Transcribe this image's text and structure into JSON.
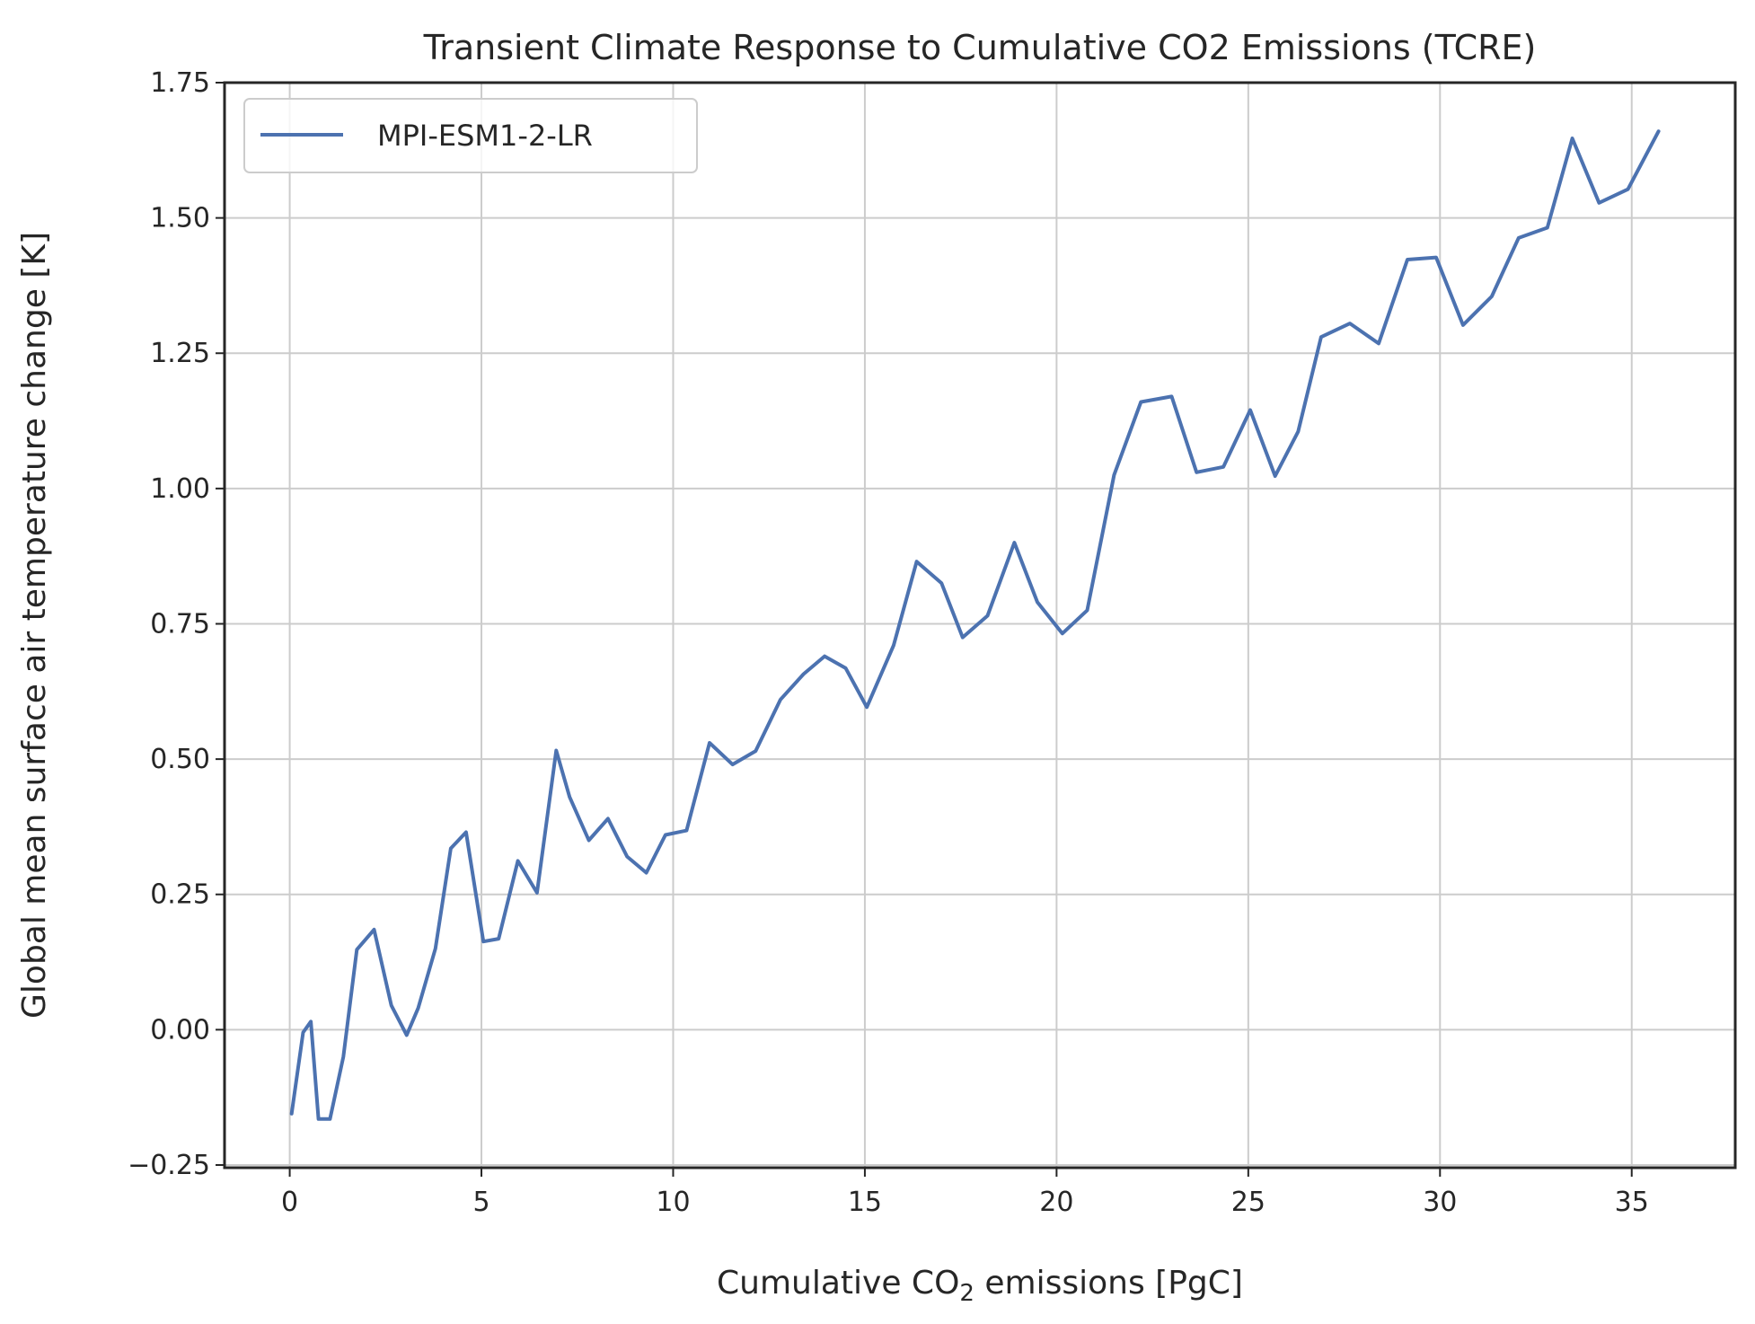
{
  "chart_data": {
    "type": "line",
    "title": "Transient Climate Response to Cumulative CO2 Emissions (TCRE)",
    "xlabel_parts": {
      "before": "Cumulative CO",
      "sub": "2",
      "after": " emissions [PgC]"
    },
    "ylabel": "Global mean surface air temperature change [K]",
    "xlim": [
      -1.7,
      37.7
    ],
    "ylim": [
      -0.255,
      1.75
    ],
    "xticks": [
      0,
      5,
      10,
      15,
      20,
      25,
      30,
      35
    ],
    "xtick_labels": [
      "0",
      "5",
      "10",
      "15",
      "20",
      "25",
      "30",
      "35"
    ],
    "yticks": [
      -0.25,
      0.0,
      0.25,
      0.5,
      0.75,
      1.0,
      1.25,
      1.5,
      1.75
    ],
    "ytick_labels": [
      "−0.25",
      "0.00",
      "0.25",
      "0.50",
      "0.75",
      "1.00",
      "1.25",
      "1.50",
      "1.75"
    ],
    "grid": true,
    "legend_position": "upper-left",
    "series": [
      {
        "name": "MPI-ESM1-2-LR",
        "color": "#4c72b0",
        "x": [
          0.05,
          0.35,
          0.55,
          0.75,
          1.05,
          1.4,
          1.75,
          2.2,
          2.65,
          3.05,
          3.35,
          3.8,
          4.2,
          4.6,
          5.05,
          5.45,
          5.95,
          6.45,
          6.95,
          7.3,
          7.8,
          8.3,
          8.8,
          9.3,
          9.8,
          10.35,
          10.95,
          11.55,
          12.15,
          12.8,
          13.4,
          13.95,
          14.5,
          15.05,
          15.75,
          16.35,
          17.0,
          17.55,
          18.2,
          18.9,
          19.5,
          20.15,
          20.8,
          21.5,
          22.2,
          23.0,
          23.65,
          24.35,
          25.05,
          25.7,
          26.3,
          26.9,
          27.65,
          28.4,
          29.15,
          29.9,
          30.6,
          31.35,
          32.05,
          32.8,
          33.45,
          34.15,
          34.9,
          35.7
        ],
        "y": [
          -0.155,
          -0.005,
          0.015,
          -0.165,
          -0.165,
          -0.05,
          0.148,
          0.185,
          0.045,
          -0.01,
          0.04,
          0.15,
          0.335,
          0.365,
          0.163,
          0.168,
          0.312,
          0.253,
          0.516,
          0.43,
          0.35,
          0.39,
          0.32,
          0.29,
          0.36,
          0.368,
          0.53,
          0.49,
          0.515,
          0.61,
          0.657,
          0.69,
          0.668,
          0.596,
          0.71,
          0.865,
          0.825,
          0.725,
          0.765,
          0.9,
          0.79,
          0.732,
          0.775,
          1.025,
          1.16,
          1.17,
          1.03,
          1.04,
          1.145,
          1.023,
          1.105,
          1.28,
          1.305,
          1.268,
          1.423,
          1.427,
          1.302,
          1.355,
          1.463,
          1.482,
          1.647,
          1.528,
          1.553,
          1.66
        ]
      }
    ]
  }
}
